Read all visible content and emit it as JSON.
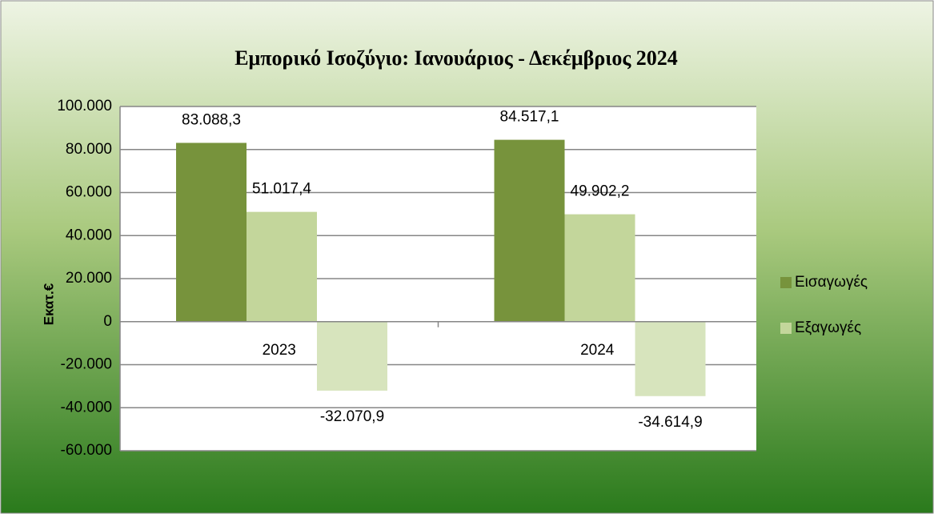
{
  "chart_data": {
    "type": "bar",
    "title": "Εμπορικό Ισοζύγιο: Ιανουάριος - Δεκέμβριος 2024",
    "y_label": "Εκατ.€",
    "categories": [
      "2023",
      "2024"
    ],
    "series": [
      {
        "name": "Εισαγωγές",
        "color": "#77933c",
        "values": [
          83088.3,
          84517.1
        ],
        "value_labels": [
          "83.088,3",
          "84.517,1"
        ]
      },
      {
        "name": "Εξαγωγές",
        "color": "#c3d69b",
        "values": [
          51017.4,
          49902.2
        ],
        "value_labels": [
          "51.017,4",
          "49.902,2"
        ]
      },
      {
        "color": "#d7e4bd",
        "values": [
          -32070.9,
          -34614.9
        ],
        "value_labels": [
          "-32.070,9",
          "-34.614,9"
        ]
      }
    ],
    "ylim": [
      -60000,
      100000
    ],
    "yticks": [
      {
        "value": -60000,
        "label": "-60.000"
      },
      {
        "value": -40000,
        "label": "-40.000"
      },
      {
        "value": -20000,
        "label": "-20.000"
      },
      0,
      {
        "value": 20000,
        "label": "20.000"
      },
      {
        "value": 40000,
        "label": "40.000"
      },
      {
        "value": 60000,
        "label": "60.000"
      },
      {
        "value": 80000,
        "label": "80.000"
      },
      {
        "value": 100000,
        "label": "100.000"
      }
    ],
    "grid": true,
    "legend": "right"
  }
}
